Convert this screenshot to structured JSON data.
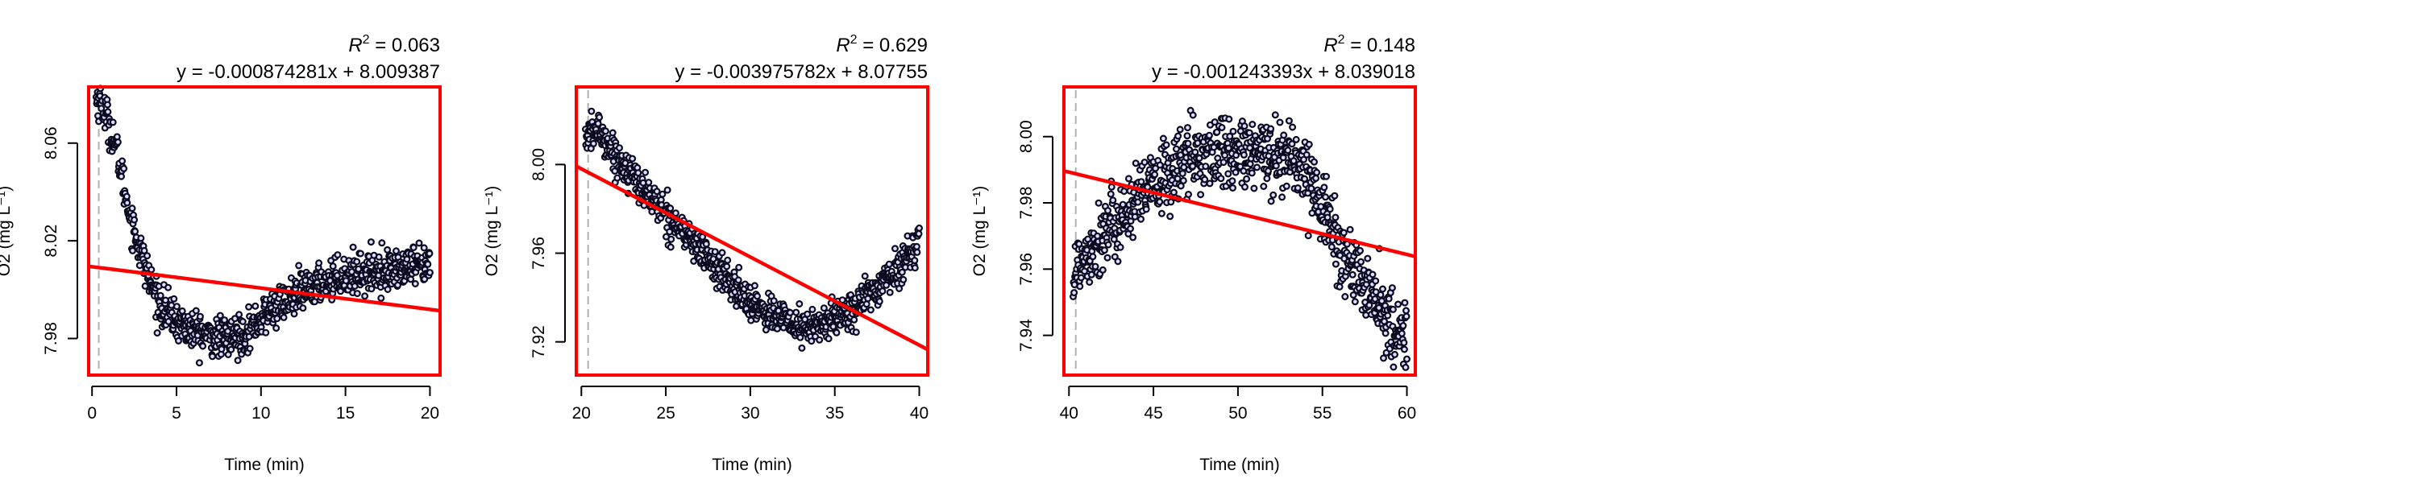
{
  "chart_data": [
    {
      "type": "scatter",
      "xlabel": "Time (min)",
      "ylabel": "O2 (mg L⁻¹)",
      "r2_prefix": "R",
      "r2_exp": "2",
      "r2_value": " = 0.063",
      "equation": "y = -0.000874281x + 8.009387",
      "xlim": [
        -0.2,
        20.6
      ],
      "ylim": [
        7.965,
        8.083
      ],
      "xticks": [
        0,
        5,
        10,
        15,
        20
      ],
      "yticks": [
        7.98,
        8.02,
        8.06
      ],
      "fit": {
        "slope": -0.000874281,
        "intercept": 8.009387
      },
      "start_x": 0.4,
      "points": {
        "x_start": 0.25,
        "x_end": 20.0,
        "key": [
          [
            0.25,
            8.078
          ],
          [
            0.5,
            8.077
          ],
          [
            1.0,
            8.068
          ],
          [
            1.5,
            8.056
          ],
          [
            2.0,
            8.038
          ],
          [
            2.5,
            8.024
          ],
          [
            3.0,
            8.013
          ],
          [
            3.5,
            8.002
          ],
          [
            4.0,
            7.994
          ],
          [
            5.0,
            7.987
          ],
          [
            6.0,
            7.983
          ],
          [
            7.0,
            7.981
          ],
          [
            8.0,
            7.98
          ],
          [
            9.0,
            7.982
          ],
          [
            10.0,
            7.988
          ],
          [
            11.0,
            7.994
          ],
          [
            12.0,
            7.997
          ],
          [
            13.0,
            8.001
          ],
          [
            14.0,
            8.004
          ],
          [
            15.0,
            8.006
          ],
          [
            17.0,
            8.008
          ],
          [
            20.0,
            8.009
          ]
        ],
        "noise": 0.004
      }
    },
    {
      "type": "scatter",
      "xlabel": "Time (min)",
      "ylabel": "O2 (mg L⁻¹)",
      "r2_prefix": "R",
      "r2_exp": "2",
      "r2_value": " = 0.629",
      "equation": "y = -0.003975782x + 8.07755",
      "xlim": [
        19.7,
        40.5
      ],
      "ylim": [
        7.905,
        8.035
      ],
      "xticks": [
        20,
        25,
        30,
        35,
        40
      ],
      "yticks": [
        7.92,
        7.96,
        8.0
      ],
      "fit": {
        "slope": -0.003975782,
        "intercept": 8.07755
      },
      "start_x": 20.4,
      "points": {
        "x_start": 20.25,
        "x_end": 40.0,
        "key": [
          [
            20.25,
            8.012
          ],
          [
            21.0,
            8.016
          ],
          [
            22.0,
            8.004
          ],
          [
            23.0,
            7.995
          ],
          [
            24.0,
            7.986
          ],
          [
            25.0,
            7.978
          ],
          [
            26.0,
            7.97
          ],
          [
            27.0,
            7.962
          ],
          [
            28.0,
            7.953
          ],
          [
            29.0,
            7.945
          ],
          [
            30.0,
            7.938
          ],
          [
            31.0,
            7.934
          ],
          [
            32.0,
            7.93
          ],
          [
            33.0,
            7.926
          ],
          [
            34.0,
            7.927
          ],
          [
            35.0,
            7.931
          ],
          [
            36.0,
            7.935
          ],
          [
            37.0,
            7.941
          ],
          [
            38.0,
            7.948
          ],
          [
            39.0,
            7.955
          ],
          [
            40.0,
            7.966
          ]
        ],
        "noise": 0.004
      }
    },
    {
      "type": "scatter",
      "xlabel": "Time (min)",
      "ylabel": "O2 (mg L⁻¹)",
      "r2_prefix": "R",
      "r2_exp": "2",
      "r2_value": " = 0.148",
      "equation": "y = -0.001243393x + 8.039018",
      "xlim": [
        39.7,
        60.5
      ],
      "ylim": [
        7.928,
        8.015
      ],
      "xticks": [
        40,
        45,
        50,
        55,
        60
      ],
      "yticks": [
        7.94,
        7.96,
        7.98,
        8.0
      ],
      "fit": {
        "slope": -0.001243393,
        "intercept": 8.039018
      },
      "start_x": 40.4,
      "points": {
        "x_start": 40.25,
        "x_end": 60.0,
        "key": [
          [
            40.25,
            7.958
          ],
          [
            41.0,
            7.965
          ],
          [
            42.0,
            7.97
          ],
          [
            43.0,
            7.975
          ],
          [
            44.0,
            7.98
          ],
          [
            45.0,
            7.985
          ],
          [
            46.0,
            7.989
          ],
          [
            47.0,
            7.993
          ],
          [
            48.0,
            7.995
          ],
          [
            49.0,
            7.995
          ],
          [
            50.0,
            7.994
          ],
          [
            51.0,
            7.994
          ],
          [
            52.0,
            7.995
          ],
          [
            53.0,
            7.994
          ],
          [
            54.0,
            7.99
          ],
          [
            55.0,
            7.98
          ],
          [
            56.0,
            7.966
          ],
          [
            57.0,
            7.958
          ],
          [
            58.0,
            7.951
          ],
          [
            59.0,
            7.944
          ],
          [
            60.0,
            7.937
          ]
        ],
        "noise": 0.0055
      }
    }
  ]
}
